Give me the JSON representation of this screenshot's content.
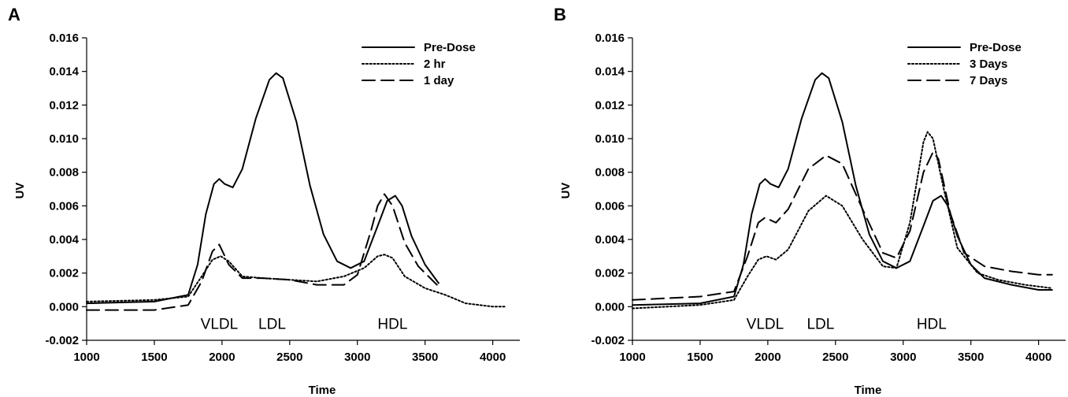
{
  "chart_data": [
    {
      "type": "line",
      "panel_label": "A",
      "xlabel": "Time",
      "ylabel": "UV",
      "xlim": [
        1000,
        4200
      ],
      "ylim": [
        -0.002,
        0.016
      ],
      "x_ticks": [
        "1000",
        "1500",
        "2000",
        "2500",
        "3000",
        "3500",
        "4000"
      ],
      "y_ticks": [
        "-0.002",
        "0.000",
        "0.002",
        "0.004",
        "0.006",
        "0.008",
        "0.010",
        "0.012",
        "0.014",
        "0.016"
      ],
      "legend_position": "top-right",
      "annotations": [
        {
          "text": "VLDL",
          "x": 1980,
          "y": -0.001
        },
        {
          "text": "LDL",
          "x": 2370,
          "y": -0.001
        },
        {
          "text": "HDL",
          "x": 3260,
          "y": -0.001
        }
      ],
      "series": [
        {
          "name": "Pre-Dose",
          "style": "solid",
          "x": [
            1000,
            1500,
            1750,
            1820,
            1880,
            1940,
            1980,
            2020,
            2080,
            2150,
            2250,
            2350,
            2400,
            2450,
            2550,
            2650,
            2750,
            2850,
            2950,
            3050,
            3150,
            3220,
            3280,
            3330,
            3400,
            3500,
            3600
          ],
          "y": [
            0.0002,
            0.0003,
            0.0007,
            0.0025,
            0.0055,
            0.0073,
            0.0076,
            0.0073,
            0.0071,
            0.0082,
            0.0112,
            0.0135,
            0.0139,
            0.0136,
            0.011,
            0.0072,
            0.0043,
            0.0027,
            0.0023,
            0.0027,
            0.0048,
            0.0063,
            0.0066,
            0.006,
            0.0042,
            0.0025,
            0.0014
          ]
        },
        {
          "name": "2 hr",
          "style": "dotted",
          "x": [
            1000,
            1500,
            1750,
            1850,
            1930,
            1990,
            2050,
            2150,
            2300,
            2500,
            2700,
            2900,
            3050,
            3150,
            3200,
            3260,
            3350,
            3500,
            3650,
            3800,
            4000,
            4100
          ],
          "y": [
            0.0003,
            0.0004,
            0.0006,
            0.0018,
            0.0028,
            0.003,
            0.0027,
            0.0018,
            0.0017,
            0.0016,
            0.0015,
            0.0018,
            0.0023,
            0.003,
            0.0031,
            0.0029,
            0.0018,
            0.0011,
            0.0007,
            0.0002,
            0.0,
            0.0
          ]
        },
        {
          "name": "1 day",
          "style": "dashed",
          "x": [
            1000,
            1500,
            1750,
            1850,
            1930,
            1980,
            2050,
            2150,
            2300,
            2500,
            2700,
            2900,
            3000,
            3100,
            3150,
            3200,
            3260,
            3350,
            3450,
            3600
          ],
          "y": [
            -0.0002,
            -0.0002,
            0.0001,
            0.0015,
            0.0033,
            0.0037,
            0.0025,
            0.0017,
            0.0017,
            0.0016,
            0.0013,
            0.0013,
            0.0019,
            0.0045,
            0.006,
            0.0067,
            0.006,
            0.0038,
            0.0024,
            0.0012
          ]
        }
      ]
    },
    {
      "type": "line",
      "panel_label": "B",
      "xlabel": "Time",
      "ylabel": "UV",
      "xlim": [
        1000,
        4200
      ],
      "ylim": [
        -0.002,
        0.016
      ],
      "x_ticks": [
        "1000",
        "1500",
        "2000",
        "2500",
        "3000",
        "3500",
        "4000"
      ],
      "y_ticks": [
        "-0.002",
        "0.000",
        "0.002",
        "0.004",
        "0.006",
        "0.008",
        "0.010",
        "0.012",
        "0.014",
        "0.016"
      ],
      "legend_position": "top-right",
      "annotations": [
        {
          "text": "VLDL",
          "x": 1980,
          "y": -0.001
        },
        {
          "text": "LDL",
          "x": 2390,
          "y": -0.001
        },
        {
          "text": "HDL",
          "x": 3210,
          "y": -0.001
        }
      ],
      "series": [
        {
          "name": "Pre-Dose",
          "style": "solid",
          "x": [
            1000,
            1500,
            1750,
            1820,
            1880,
            1940,
            1980,
            2020,
            2080,
            2150,
            2250,
            2350,
            2400,
            2450,
            2550,
            2650,
            2750,
            2850,
            2950,
            3050,
            3150,
            3220,
            3280,
            3330,
            3400,
            3500,
            3600,
            3800,
            4000,
            4100
          ],
          "y": [
            0.0001,
            0.0002,
            0.0006,
            0.0025,
            0.0055,
            0.0073,
            0.0076,
            0.0073,
            0.0071,
            0.0082,
            0.0112,
            0.0135,
            0.0139,
            0.0136,
            0.011,
            0.0072,
            0.0043,
            0.0027,
            0.0023,
            0.0027,
            0.0048,
            0.0063,
            0.0066,
            0.006,
            0.0042,
            0.0025,
            0.0017,
            0.0013,
            0.001,
            0.001
          ]
        },
        {
          "name": "3 Days",
          "style": "dotted",
          "x": [
            1000,
            1500,
            1750,
            1850,
            1930,
            1990,
            2060,
            2150,
            2300,
            2430,
            2550,
            2700,
            2850,
            2950,
            3050,
            3150,
            3180,
            3220,
            3300,
            3400,
            3550,
            3700,
            3900,
            4100
          ],
          "y": [
            -0.0001,
            0.0001,
            0.0004,
            0.0018,
            0.0028,
            0.003,
            0.0028,
            0.0034,
            0.0057,
            0.0066,
            0.006,
            0.004,
            0.0024,
            0.0023,
            0.005,
            0.0098,
            0.0104,
            0.01,
            0.007,
            0.0035,
            0.002,
            0.0016,
            0.0013,
            0.0011
          ]
        },
        {
          "name": "7 Days",
          "style": "dashed",
          "x": [
            1000,
            1500,
            1750,
            1850,
            1930,
            1980,
            2060,
            2150,
            2300,
            2430,
            2550,
            2700,
            2850,
            2950,
            3050,
            3150,
            3220,
            3260,
            3350,
            3450,
            3600,
            3800,
            4000,
            4100
          ],
          "y": [
            0.0004,
            0.0006,
            0.0009,
            0.003,
            0.005,
            0.0053,
            0.005,
            0.0058,
            0.0082,
            0.009,
            0.0085,
            0.0058,
            0.0032,
            0.0029,
            0.0045,
            0.008,
            0.0092,
            0.0088,
            0.0055,
            0.0032,
            0.0024,
            0.0021,
            0.0019,
            0.0019
          ]
        }
      ]
    }
  ]
}
